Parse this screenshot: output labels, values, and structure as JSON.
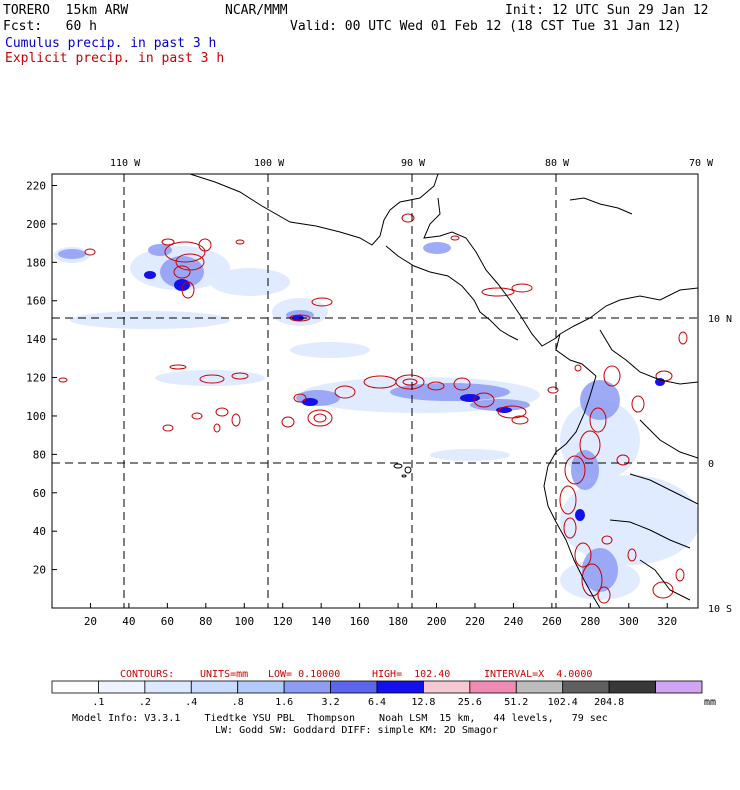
{
  "header": {
    "model": "TORERO  15km ARW",
    "org": "NCAR/MMM",
    "init": "Init: 12 UTC Sun 29 Jan 12",
    "fcst": "Fcst:   60 h",
    "valid": "Valid: 00 UTC Wed 01 Feb 12 (18 CST Tue 31 Jan 12)",
    "field_cumulus": "Cumulus precip. in past 3 h",
    "field_explicit": "Explicit precip. in past 3 h"
  },
  "colors": {
    "cumulus": "#0000cc",
    "explicit": "#cc0000",
    "coast": "#000000",
    "grid": "#000000"
  },
  "map": {
    "top_lon_labels": [
      "110 W",
      "100 W",
      "90 W",
      "80 W",
      "70 W"
    ],
    "right_lat_labels": [
      "10 N",
      "0",
      "10 S"
    ],
    "x_ticks": [
      "20",
      "40",
      "60",
      "80",
      "100",
      "120",
      "140",
      "160",
      "180",
      "200",
      "220",
      "240",
      "260",
      "280",
      "300",
      "320"
    ],
    "y_ticks": [
      "20",
      "40",
      "60",
      "80",
      "100",
      "120",
      "140",
      "160",
      "180",
      "200",
      "220"
    ]
  },
  "contour_info": {
    "title": "CONTOURS:",
    "units": "UNITS=mm",
    "low": "LOW= 0.10000",
    "high": "HIGH=  102.40",
    "interval": "INTERVAL=X  4.0000"
  },
  "colorbar": {
    "colors": [
      "#ffffff",
      "#eef4ff",
      "#dde9ff",
      "#c9dcff",
      "#b3cbfb",
      "#8e9cf4",
      "#5c64f0",
      "#1410e8",
      "#f6c8d2",
      "#f08cb4",
      "#bcbcbc",
      "#606060",
      "#383838",
      "#d2a4f4"
    ],
    "labels": [
      ".1",
      ".2",
      ".4",
      ".8",
      "1.6",
      "3.2",
      "6.4",
      "12.8",
      "25.6",
      "51.2",
      "102.4",
      "204.8"
    ],
    "unit": "mm"
  },
  "footer": {
    "line1": "Model Info: V3.3.1    Tiedtke YSU PBL  Thompson    Noah LSM  15 km,   44 levels,   79 sec",
    "line2": "LW: Godd SW: Goddard DIFF: simple KM: 2D Smagor"
  }
}
